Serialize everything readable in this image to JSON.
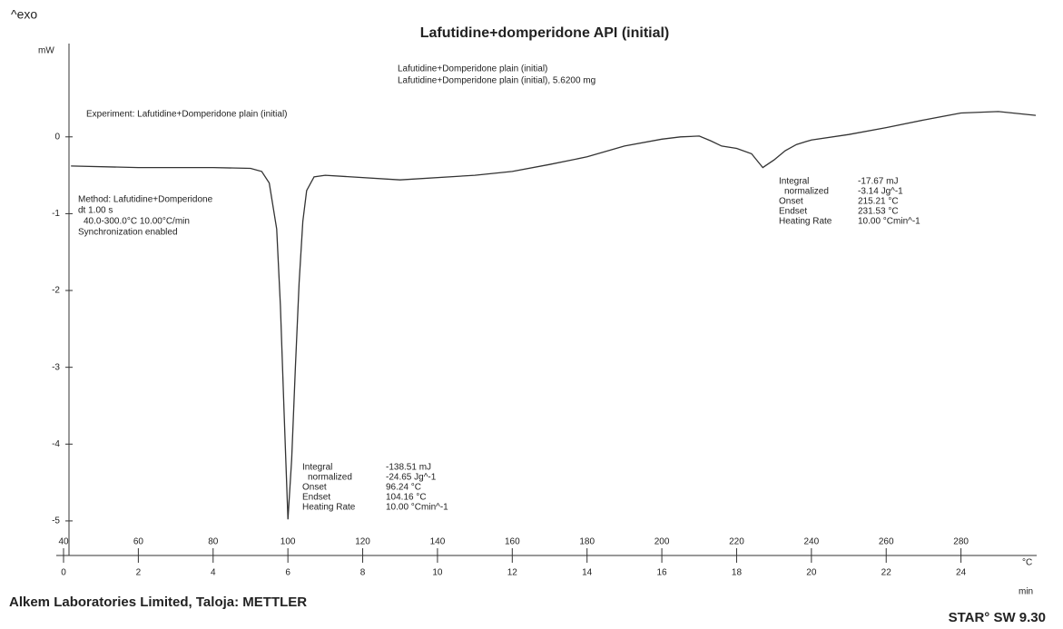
{
  "exo_label": "^exo",
  "chart_data": {
    "type": "line",
    "title": "Lafutidine+domperidone API (initial)",
    "legend_lines": [
      "Lafutidine+Domperidone plain (initial)",
      "Lafutidine+Domperidone plain (initial), 5.6200 mg"
    ],
    "experiment": "Experiment: Lafutidine+Domperidone plain (initial)",
    "method": [
      "Method: Lafutidine+Domperidone",
      "dt 1.00 s",
      "40.0-300.0°C 10.00°C/min",
      "Synchronization enabled"
    ],
    "ylabel": "mW",
    "xlabel": "°C",
    "x2label": "min",
    "x": [
      42,
      60,
      80,
      90,
      93,
      95,
      97,
      98,
      99,
      100,
      101,
      102,
      103,
      104,
      105,
      107,
      110,
      130,
      150,
      160,
      170,
      180,
      190,
      200,
      205,
      210,
      213,
      216,
      220,
      224,
      227,
      230,
      233,
      236,
      240,
      250,
      260,
      270,
      280,
      290,
      300
    ],
    "values": [
      -0.38,
      -0.4,
      -0.4,
      -0.41,
      -0.45,
      -0.6,
      -1.2,
      -2.2,
      -3.6,
      -4.98,
      -4.2,
      -3.0,
      -1.9,
      -1.1,
      -0.7,
      -0.52,
      -0.5,
      -0.56,
      -0.5,
      -0.45,
      -0.36,
      -0.26,
      -0.12,
      -0.03,
      0.0,
      0.01,
      -0.05,
      -0.12,
      -0.15,
      -0.22,
      -0.4,
      -0.3,
      -0.18,
      -0.1,
      -0.04,
      0.03,
      0.12,
      0.22,
      0.31,
      0.33,
      0.28
    ],
    "color": "#333333",
    "xlim": [
      40,
      300
    ],
    "xticks": [
      40,
      60,
      80,
      100,
      120,
      140,
      160,
      180,
      200,
      220,
      240,
      260,
      280
    ],
    "x2ticks": [
      0,
      2,
      4,
      6,
      8,
      10,
      12,
      14,
      16,
      18,
      20,
      22,
      24
    ],
    "ylim": [
      -5.45,
      1.25
    ],
    "yticks": [
      0,
      -1,
      -2,
      -3,
      -4,
      -5
    ],
    "results": [
      {
        "rows": [
          [
            "Integral",
            "-138.51 mJ"
          ],
          [
            "normalized",
            "-24.65 Jg^-1"
          ],
          [
            "Onset",
            "96.24 °C"
          ],
          [
            "Endset",
            "104.16 °C"
          ],
          [
            "Heating Rate",
            "10.00 °Cmin^-1"
          ]
        ]
      },
      {
        "rows": [
          [
            "Integral",
            "-17.67 mJ"
          ],
          [
            "normalized",
            "-3.14 Jg^-1"
          ],
          [
            "Onset",
            "215.21 °C"
          ],
          [
            "Endset",
            "231.53 °C"
          ],
          [
            "Heating Rate",
            "10.00 °Cmin^-1"
          ]
        ]
      }
    ]
  },
  "footer_left": "Alkem Laboratories Limited, Taloja: METTLER",
  "footer_right": "STAR° SW 9.30"
}
